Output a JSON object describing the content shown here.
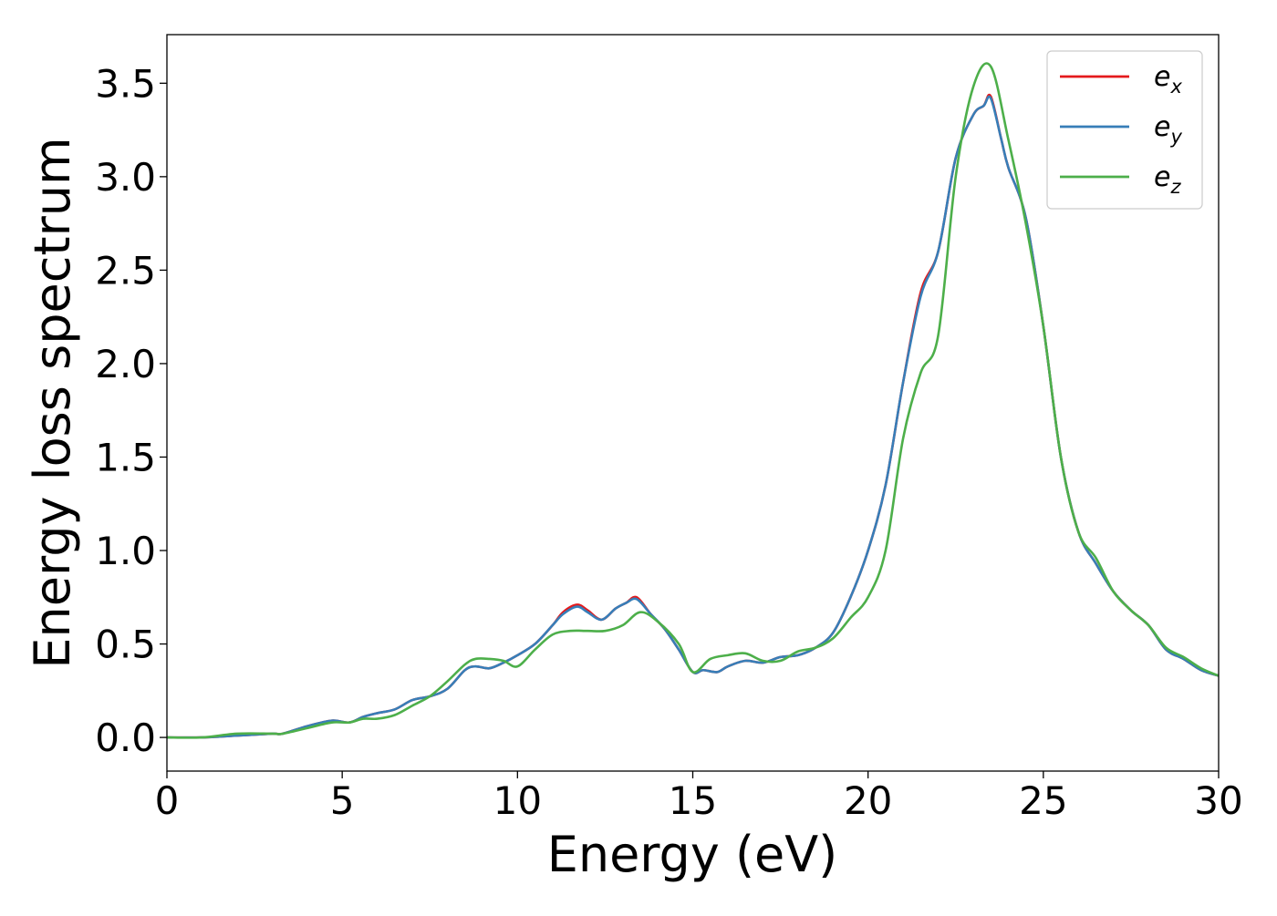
{
  "chart_data": {
    "type": "line",
    "xlabel": "Energy (eV)",
    "ylabel": "Energy loss spectrum",
    "xlim": [
      0,
      30
    ],
    "ylim": [
      -0.18,
      3.76
    ],
    "xticks": [
      0,
      5,
      10,
      15,
      20,
      25,
      30
    ],
    "xtick_labels": [
      "0",
      "5",
      "10",
      "15",
      "20",
      "25",
      "30"
    ],
    "yticks": [
      0.0,
      0.5,
      1.0,
      1.5,
      2.0,
      2.5,
      3.0,
      3.5
    ],
    "ytick_labels": [
      "0.0",
      "0.5",
      "1.0",
      "1.5",
      "2.0",
      "2.5",
      "3.0",
      "3.5"
    ],
    "grid": false,
    "legend_position": "top-right",
    "series": [
      {
        "name": "e_x",
        "label_base": "e",
        "label_sub": "x",
        "color": "#e41a1c",
        "x": [
          0,
          1,
          2,
          3,
          3.3,
          4,
          4.7,
          5.2,
          5.6,
          6,
          6.5,
          7,
          7.5,
          8,
          8.5,
          8.8,
          9.2,
          9.6,
          10,
          10.5,
          11,
          11.3,
          11.7,
          12,
          12.4,
          12.8,
          13.1,
          13.4,
          13.8,
          14.2,
          14.6,
          15,
          15.3,
          15.7,
          16,
          16.5,
          17,
          17.5,
          18,
          18.5,
          19,
          19.5,
          20,
          20.5,
          21,
          21.5,
          22,
          22.5,
          23,
          23.3,
          23.5,
          23.8,
          24,
          24.5,
          25,
          25.5,
          26,
          26.5,
          27,
          27.5,
          28,
          28.5,
          29,
          29.5,
          30
        ],
        "y": [
          0,
          0,
          0.01,
          0.02,
          0.02,
          0.06,
          0.09,
          0.08,
          0.11,
          0.13,
          0.15,
          0.2,
          0.22,
          0.26,
          0.36,
          0.38,
          0.37,
          0.4,
          0.44,
          0.5,
          0.6,
          0.67,
          0.71,
          0.68,
          0.63,
          0.69,
          0.72,
          0.75,
          0.66,
          0.58,
          0.47,
          0.35,
          0.36,
          0.35,
          0.38,
          0.41,
          0.4,
          0.43,
          0.44,
          0.48,
          0.56,
          0.75,
          1.0,
          1.35,
          1.9,
          2.38,
          2.6,
          3.1,
          3.33,
          3.38,
          3.43,
          3.2,
          3.05,
          2.78,
          2.2,
          1.5,
          1.1,
          0.93,
          0.78,
          0.68,
          0.6,
          0.47,
          0.42,
          0.36,
          0.33
        ]
      },
      {
        "name": "e_y",
        "label_base": "e",
        "label_sub": "y",
        "color": "#377eb8",
        "x": [
          0,
          1,
          2,
          3,
          3.3,
          4,
          4.7,
          5.2,
          5.6,
          6,
          6.5,
          7,
          7.5,
          8,
          8.5,
          8.8,
          9.2,
          9.6,
          10,
          10.5,
          11,
          11.3,
          11.7,
          12,
          12.4,
          12.8,
          13.1,
          13.4,
          13.8,
          14.2,
          14.6,
          15,
          15.3,
          15.7,
          16,
          16.5,
          17,
          17.5,
          18,
          18.5,
          19,
          19.5,
          20,
          20.5,
          21,
          21.5,
          22,
          22.5,
          23,
          23.3,
          23.5,
          23.8,
          24,
          24.5,
          25,
          25.5,
          26,
          26.5,
          27,
          27.5,
          28,
          28.5,
          29,
          29.5,
          30
        ],
        "y": [
          0,
          0,
          0.01,
          0.02,
          0.02,
          0.06,
          0.09,
          0.08,
          0.11,
          0.13,
          0.15,
          0.2,
          0.22,
          0.26,
          0.36,
          0.38,
          0.37,
          0.4,
          0.44,
          0.5,
          0.6,
          0.66,
          0.7,
          0.67,
          0.63,
          0.69,
          0.72,
          0.74,
          0.66,
          0.58,
          0.47,
          0.35,
          0.36,
          0.35,
          0.38,
          0.41,
          0.4,
          0.43,
          0.44,
          0.48,
          0.56,
          0.75,
          1.0,
          1.35,
          1.9,
          2.36,
          2.6,
          3.1,
          3.33,
          3.38,
          3.42,
          3.2,
          3.05,
          2.78,
          2.2,
          1.5,
          1.1,
          0.93,
          0.78,
          0.68,
          0.6,
          0.47,
          0.42,
          0.36,
          0.33
        ]
      },
      {
        "name": "e_z",
        "label_base": "e",
        "label_sub": "z",
        "color": "#4daf4a",
        "x": [
          0,
          1,
          2,
          3,
          3.3,
          4,
          4.7,
          5.2,
          5.6,
          6,
          6.5,
          7,
          7.5,
          8,
          8.5,
          8.8,
          9.2,
          9.6,
          10,
          10.5,
          11,
          11.5,
          12,
          12.5,
          13,
          13.5,
          14,
          14.6,
          15,
          15.5,
          16,
          16.5,
          17,
          17.5,
          18,
          18.5,
          19,
          19.5,
          20,
          20.5,
          21,
          21.5,
          22,
          22.5,
          23,
          23.5,
          24,
          24.5,
          25,
          25.5,
          26,
          26.5,
          27,
          27.5,
          28,
          28.5,
          29,
          29.5,
          30
        ],
        "y": [
          0,
          0,
          0.02,
          0.02,
          0.02,
          0.05,
          0.08,
          0.08,
          0.1,
          0.1,
          0.12,
          0.17,
          0.22,
          0.3,
          0.39,
          0.42,
          0.42,
          0.41,
          0.38,
          0.47,
          0.55,
          0.57,
          0.57,
          0.57,
          0.6,
          0.67,
          0.62,
          0.5,
          0.35,
          0.42,
          0.44,
          0.45,
          0.41,
          0.41,
          0.46,
          0.48,
          0.53,
          0.64,
          0.75,
          1.0,
          1.6,
          1.95,
          2.15,
          3.0,
          3.48,
          3.59,
          3.2,
          2.75,
          2.2,
          1.5,
          1.1,
          0.96,
          0.78,
          0.68,
          0.6,
          0.48,
          0.43,
          0.37,
          0.33
        ]
      }
    ]
  }
}
